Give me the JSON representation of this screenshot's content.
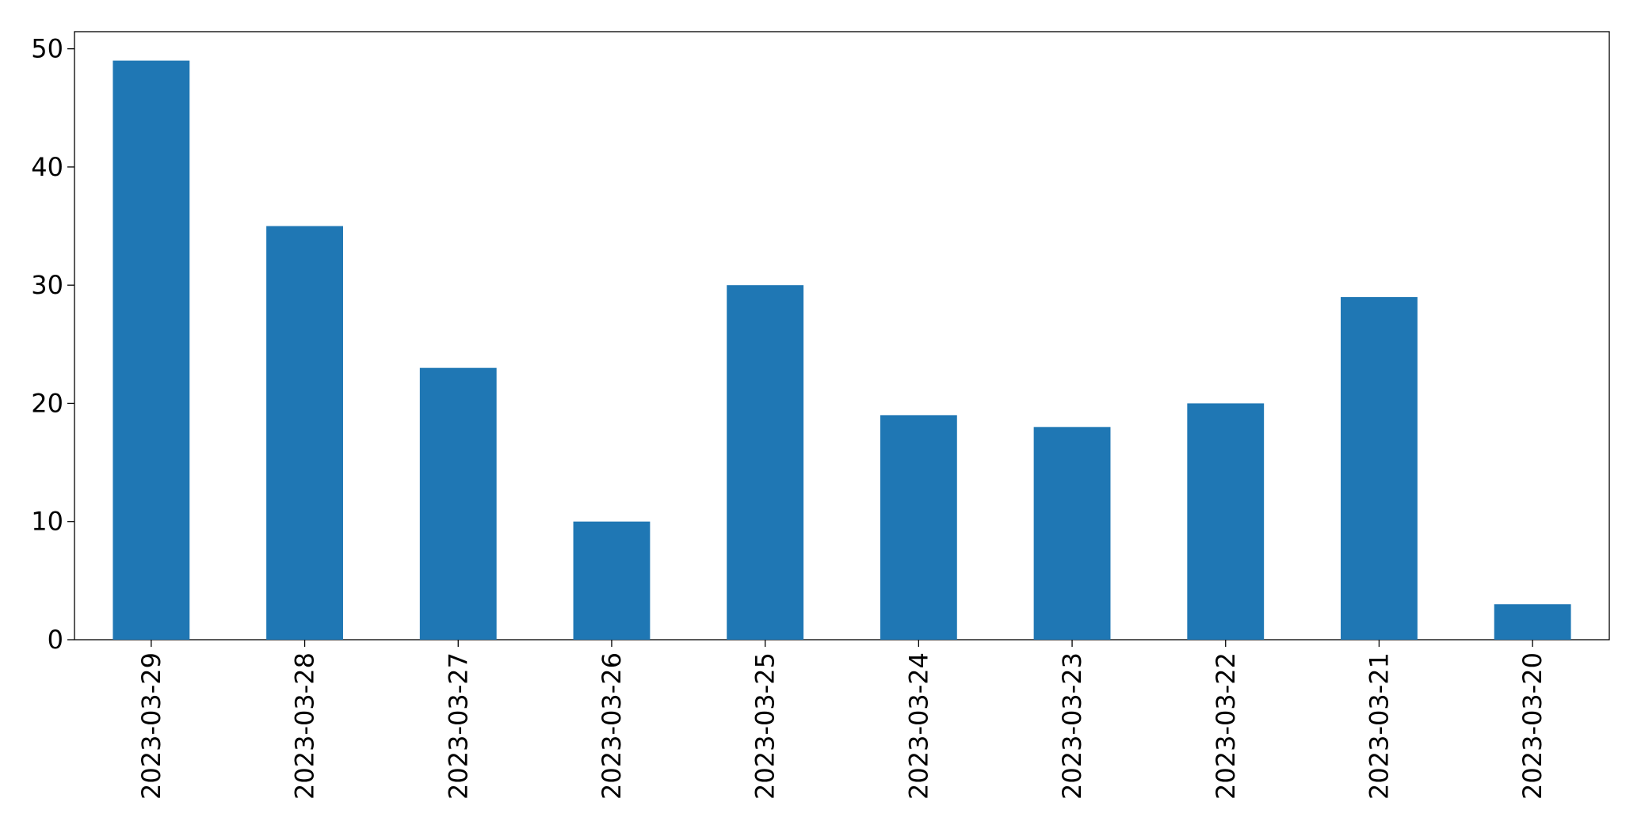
{
  "chart_data": {
    "type": "bar",
    "categories": [
      "2023-03-29",
      "2023-03-28",
      "2023-03-27",
      "2023-03-26",
      "2023-03-25",
      "2023-03-24",
      "2023-03-23",
      "2023-03-22",
      "2023-03-21",
      "2023-03-20"
    ],
    "values": [
      49,
      35,
      23,
      10,
      30,
      19,
      18,
      20,
      29,
      3
    ],
    "color": "#1f77b4",
    "ylim": [
      0,
      51.45
    ],
    "yticks": [
      0,
      10,
      20,
      30,
      40,
      50
    ],
    "grid": false
  }
}
